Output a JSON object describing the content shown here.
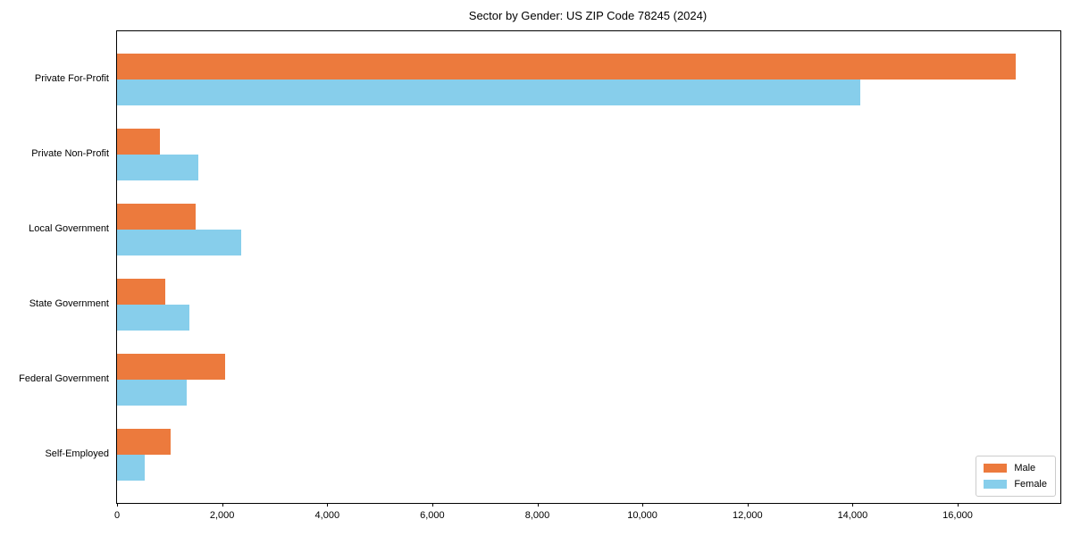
{
  "chart_data": {
    "type": "bar",
    "orientation": "horizontal",
    "title": "Sector by Gender: US ZIP Code 78245 (2024)",
    "xlabel": "",
    "ylabel": "",
    "categories": [
      "Private For-Profit",
      "Private Non-Profit",
      "Local Government",
      "State Government",
      "Federal Government",
      "Self-Employed"
    ],
    "series": [
      {
        "name": "Male",
        "color": "#ec7a3d",
        "values": [
          17100,
          810,
          1500,
          920,
          2050,
          1020
        ]
      },
      {
        "name": "Female",
        "color": "#87ceeb",
        "values": [
          14140,
          1550,
          2370,
          1370,
          1330,
          520
        ]
      }
    ],
    "xlim": [
      0,
      17955
    ],
    "xticks": [
      0,
      2000,
      4000,
      6000,
      8000,
      10000,
      12000,
      14000,
      16000
    ],
    "xtick_labels": [
      "0",
      "2,000",
      "4,000",
      "6,000",
      "8,000",
      "10,000",
      "12,000",
      "14,000",
      "16,000"
    ],
    "grid": false,
    "legend": {
      "position": "lower right",
      "labels": [
        "Male",
        "Female"
      ]
    }
  }
}
